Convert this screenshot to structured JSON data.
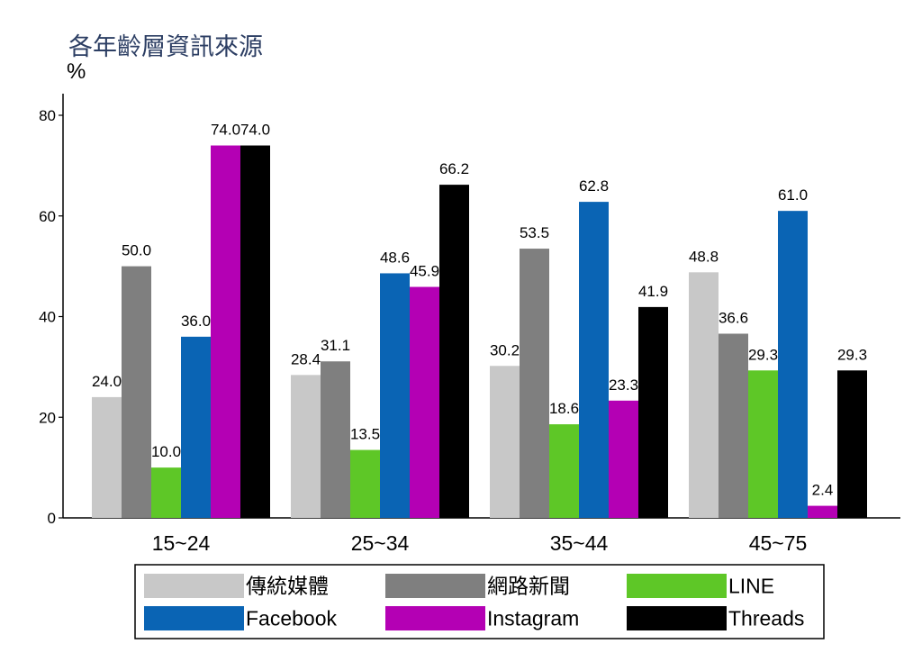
{
  "chart_data": {
    "type": "bar",
    "title": "各年齡層資訊來源",
    "ylabel": "%",
    "xlabel": "",
    "ylim": [
      0,
      80
    ],
    "yticks": [
      0,
      20,
      40,
      60,
      80
    ],
    "grid": false,
    "legend_position": "bottom",
    "categories": [
      "15~24",
      "25~34",
      "35~44",
      "45~75"
    ],
    "series": [
      {
        "name": "傳統媒體",
        "color": "#c8c8c8",
        "values": [
          24.0,
          28.4,
          30.2,
          48.8
        ],
        "labels": [
          "24.0",
          "28.4",
          "30.2",
          "48.8"
        ]
      },
      {
        "name": "網路新聞",
        "color": "#7f7f7f",
        "values": [
          50.0,
          31.1,
          53.5,
          36.6
        ],
        "labels": [
          "50.0",
          "31.1",
          "53.5",
          "36.6"
        ]
      },
      {
        "name": "LINE",
        "color": "#5ec727",
        "values": [
          10.0,
          13.5,
          18.6,
          29.3
        ],
        "labels": [
          "10.0",
          "13.5",
          "18.6",
          "29.3"
        ]
      },
      {
        "name": "Facebook",
        "color": "#0a64b4",
        "values": [
          36.0,
          48.6,
          62.8,
          61.0
        ],
        "labels": [
          "36.0",
          "48.6",
          "62.8",
          "61.0"
        ]
      },
      {
        "name": "Instagram",
        "color": "#b400b4",
        "values": [
          74.0,
          45.9,
          23.3,
          2.4
        ],
        "labels": [
          "74.0",
          "45.9",
          "23.3",
          "2.4"
        ]
      },
      {
        "name": "Threads",
        "color": "#000000",
        "values": [
          74.0,
          66.2,
          41.9,
          29.3
        ],
        "labels": [
          "74.0",
          "66.2",
          "41.9",
          "29.3"
        ]
      }
    ]
  }
}
